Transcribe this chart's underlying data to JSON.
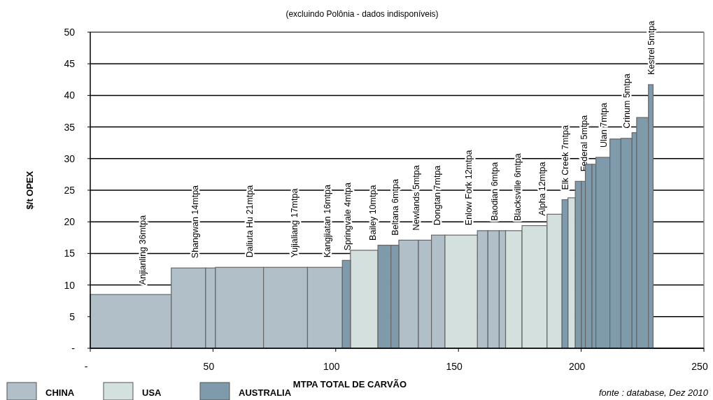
{
  "chart_data": {
    "type": "histogram",
    "title": "(excluindo Polônia - dados indisponíveis)",
    "xlabel": "MTPA TOTAL DE CARVÃO",
    "ylabel": "$/t OPEX",
    "bins": [
      0,
      33,
      47,
      51,
      70.6,
      88.5,
      102.7,
      106,
      117.2,
      122.5,
      125.7,
      133.7,
      139,
      144.5,
      157.7,
      162,
      166.6,
      169.2,
      175.9,
      186.1,
      192.2,
      194.6,
      197.6,
      200.1,
      201.7,
      204.4,
      206,
      211.7,
      216.2,
      220.7,
      222.6,
      227.4,
      229.3
    ],
    "series": [
      {
        "name": "CHINA",
        "color": "#b1bfc8",
        "values": [
          8.5,
          12.7,
          12.7,
          12.8,
          12.8,
          12.8,
          null,
          null,
          null,
          null,
          17.1,
          17.1,
          17.9,
          null,
          18.6,
          18.6,
          18.6,
          null,
          null,
          null,
          null,
          null,
          null,
          null,
          null,
          null,
          null,
          null,
          null,
          null,
          null,
          null
        ]
      },
      {
        "name": "USA",
        "color": "#d3e0de",
        "values": [
          null,
          null,
          null,
          null,
          null,
          null,
          null,
          15.5,
          null,
          null,
          null,
          null,
          null,
          17.9,
          null,
          null,
          null,
          18.6,
          19.4,
          21.2,
          null,
          23.8,
          null,
          null,
          null,
          null,
          null,
          null,
          null,
          null,
          null,
          null
        ]
      },
      {
        "name": "AUSTRALIA",
        "color": "#7f9bab",
        "values": [
          null,
          null,
          null,
          null,
          null,
          null,
          13.9,
          null,
          16.3,
          16.3,
          null,
          null,
          null,
          null,
          null,
          null,
          null,
          null,
          null,
          null,
          23.5,
          null,
          26.4,
          26.4,
          29.1,
          29.1,
          30.2,
          33.1,
          33.2,
          34.1,
          36.5,
          41.7
        ]
      }
    ],
    "xlim": [
      0,
      250
    ],
    "xticks": [
      {
        "value": 0,
        "label": "-"
      },
      50,
      100,
      150,
      200,
      250
    ],
    "ylim": [
      0,
      50
    ],
    "yticks": [
      {
        "value": 0,
        "label": "-"
      },
      5,
      10,
      15,
      20,
      25,
      30,
      35,
      40,
      45,
      50
    ],
    "grid": "y",
    "legend": "bottom left",
    "annotations": [
      {
        "text": "Anjianling  36mtpa",
        "x": 21,
        "y": 8.5
      },
      {
        "text": "Shangwan  14mtpa",
        "x": 42.5,
        "y": 12.7
      },
      {
        "text": "Daliuta Hu  21mtpa",
        "x": 64.7,
        "y": 12.8
      },
      {
        "text": "Yujialiang  17mtpa",
        "x": 83,
        "y": 12.8
      },
      {
        "text": "Kangjiatan  16mtpa",
        "x": 96.4,
        "y": 12.8
      },
      {
        "text": "Springvale  4mtpa",
        "x": 104.5,
        "y": 13.9
      },
      {
        "text": "Bailey 10mtpa",
        "x": 115,
        "y": 15.5
      },
      {
        "text": "Beltana 6mtpa",
        "x": 124,
        "y": 16.3
      },
      {
        "text": "Newlands  5mtpa",
        "x": 132.5,
        "y": 17.1
      },
      {
        "text": "Dongtan  7mtpa",
        "x": 141,
        "y": 17.9
      },
      {
        "text": "Enlow Fork  12mtpa",
        "x": 153.9,
        "y": 17.9
      },
      {
        "text": "Baodian  6mtpa",
        "x": 164.5,
        "y": 18.6
      },
      {
        "text": "Blacksville 6mtpa",
        "x": 174,
        "y": 18.6
      },
      {
        "text": "Alpha  12mtpa",
        "x": 184,
        "y": 19.4
      },
      {
        "text": "Elk Creek  7mtpa",
        "x": 193.4,
        "y": 23.5
      },
      {
        "text": "Federal  5mtpa",
        "x": 200.9,
        "y": 26.4
      },
      {
        "text": "Ulan  7mtpa",
        "x": 209,
        "y": 30.2
      },
      {
        "text": "Crinum  5mtpa",
        "x": 218.5,
        "y": 33.2
      },
      {
        "text": "Kestrel 5mtpa",
        "x": 228.3,
        "y": 41.7
      },
      "fonte : database, Dez 2010"
    ]
  }
}
